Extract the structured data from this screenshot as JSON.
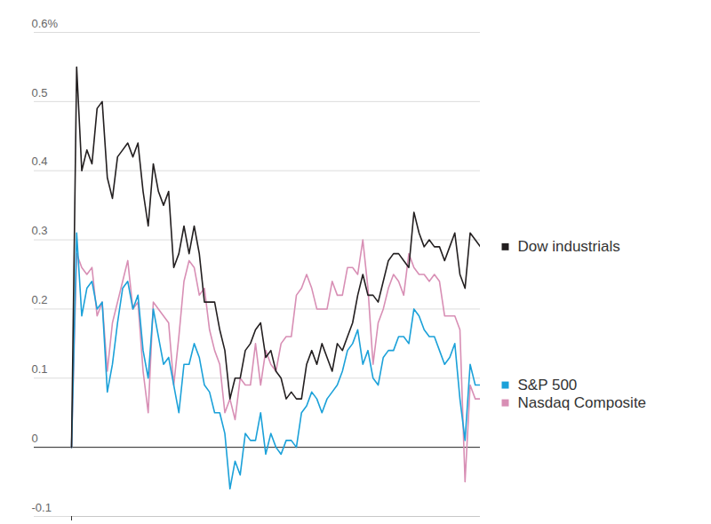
{
  "chart_data": {
    "type": "line",
    "x": [
      0,
      1,
      2,
      3,
      4,
      5,
      6,
      7,
      8,
      9,
      10,
      11,
      12,
      13,
      14,
      15,
      16,
      17,
      18,
      19,
      20,
      21,
      22,
      23,
      24,
      25,
      26,
      27,
      28,
      29,
      30,
      31,
      32,
      33,
      34,
      35,
      36,
      37,
      38,
      39,
      40,
      41,
      42,
      43,
      44,
      45,
      46,
      47,
      48,
      49,
      50,
      51,
      52,
      53,
      54,
      55,
      56,
      57,
      58,
      59,
      60,
      61,
      62,
      63,
      64,
      65,
      66,
      67,
      68,
      69,
      70,
      71,
      72,
      73,
      74,
      75,
      76,
      77,
      78,
      79,
      80
    ],
    "xlim": [
      0,
      80
    ],
    "xticks": [
      0
    ],
    "ylim": [
      -0.1,
      0.6
    ],
    "yticks": [
      -0.1,
      0,
      0.1,
      0.2,
      0.3,
      0.4,
      0.5,
      {
        "value": 0.6,
        "label": "0.6%"
      }
    ],
    "grid": true,
    "legend": "right",
    "tick_labels": "y",
    "series": [
      {
        "name": "Dow industrials",
        "color": "#231f20",
        "values": [
          0,
          0.55,
          0.4,
          0.43,
          0.41,
          0.49,
          0.5,
          0.39,
          0.36,
          0.42,
          0.43,
          0.44,
          0.42,
          0.44,
          0.37,
          0.32,
          0.41,
          0.37,
          0.35,
          0.37,
          0.26,
          0.28,
          0.32,
          0.28,
          0.32,
          0.28,
          0.21,
          0.21,
          0.21,
          0.17,
          0.14,
          0.07,
          0.1,
          0.1,
          0.14,
          0.15,
          0.17,
          0.18,
          0.13,
          0.14,
          0.11,
          0.1,
          0.07,
          0.08,
          0.07,
          0.07,
          0.12,
          0.14,
          0.12,
          0.15,
          0.13,
          0.11,
          0.15,
          0.14,
          0.16,
          0.18,
          0.22,
          0.25,
          0.22,
          0.22,
          0.21,
          0.24,
          0.27,
          0.28,
          0.28,
          0.27,
          0.26,
          0.34,
          0.31,
          0.29,
          0.3,
          0.29,
          0.29,
          0.27,
          0.29,
          0.31,
          0.25,
          0.23,
          0.31,
          0.3,
          0.29
        ]
      },
      {
        "name": "S&P 500",
        "color": "#1ba1d9",
        "values": [
          0,
          0.31,
          0.19,
          0.23,
          0.24,
          0.2,
          0.21,
          0.08,
          0.12,
          0.18,
          0.23,
          0.24,
          0.2,
          0.22,
          0.14,
          0.1,
          0.2,
          0.16,
          0.12,
          0.13,
          0.09,
          0.05,
          0.12,
          0.12,
          0.15,
          0.13,
          0.09,
          0.08,
          0.05,
          0.05,
          0.02,
          -0.06,
          -0.02,
          -0.04,
          0.02,
          0.01,
          0.01,
          0.05,
          -0.01,
          0.02,
          0.0,
          -0.01,
          0.01,
          0.01,
          0.0,
          0.05,
          0.06,
          0.08,
          0.07,
          0.05,
          0.07,
          0.08,
          0.09,
          0.11,
          0.14,
          0.15,
          0.17,
          0.12,
          0.14,
          0.1,
          0.09,
          0.13,
          0.14,
          0.14,
          0.16,
          0.16,
          0.15,
          0.2,
          0.19,
          0.17,
          0.16,
          0.16,
          0.14,
          0.12,
          0.13,
          0.15,
          0.07,
          0.01,
          0.12,
          0.09,
          0.09
        ]
      },
      {
        "name": "Nasdaq Composite",
        "color": "#d88fb5",
        "values": [
          0,
          0.28,
          0.26,
          0.25,
          0.26,
          0.19,
          0.21,
          0.11,
          0.18,
          0.21,
          0.24,
          0.27,
          0.2,
          0.21,
          0.11,
          0.05,
          0.21,
          0.2,
          0.19,
          0.18,
          0.09,
          0.16,
          0.24,
          0.27,
          0.26,
          0.22,
          0.23,
          0.17,
          0.14,
          0.12,
          0.05,
          0.07,
          0.04,
          0.1,
          0.09,
          0.09,
          0.15,
          0.09,
          0.14,
          0.12,
          0.11,
          0.15,
          0.16,
          0.16,
          0.22,
          0.23,
          0.25,
          0.23,
          0.2,
          0.2,
          0.2,
          0.24,
          0.22,
          0.22,
          0.26,
          0.26,
          0.25,
          0.3,
          0.23,
          0.12,
          0.18,
          0.2,
          0.23,
          0.25,
          0.24,
          0.22,
          0.28,
          0.26,
          0.25,
          0.25,
          0.24,
          0.25,
          0.24,
          0.19,
          0.19,
          0.19,
          0.17,
          -0.05,
          0.09,
          0.07,
          0.07
        ]
      }
    ]
  }
}
